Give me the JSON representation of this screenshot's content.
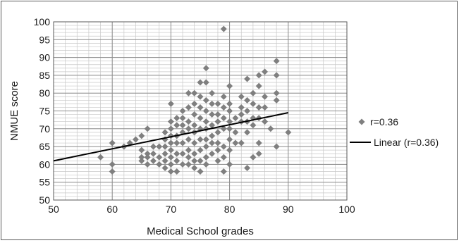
{
  "chart_data": {
    "type": "scatter",
    "xlabel": "Medical School grades",
    "ylabel": "NMUE score",
    "xlim": [
      50,
      100
    ],
    "ylim": [
      50,
      100
    ],
    "x_ticks": [
      50,
      60,
      70,
      80,
      90,
      100
    ],
    "y_ticks": [
      50,
      55,
      60,
      65,
      70,
      75,
      80,
      85,
      90,
      95,
      100
    ],
    "x_tick_labels": [
      "50",
      "60",
      "70",
      "80",
      "90",
      "100"
    ],
    "y_tick_labels": [
      "50",
      "55",
      "60",
      "65",
      "70",
      "75",
      "80",
      "85",
      "90",
      "95",
      "100"
    ],
    "grid": true,
    "legend_position": "right",
    "series": [
      {
        "name": "r=0.36",
        "marker": "diamond",
        "color": "#7f7f7f",
        "points": [
          [
            58,
            62
          ],
          [
            60,
            66
          ],
          [
            60,
            60
          ],
          [
            60,
            58
          ],
          [
            62,
            65
          ],
          [
            63,
            66
          ],
          [
            64,
            67
          ],
          [
            65,
            68
          ],
          [
            65,
            64
          ],
          [
            65,
            62
          ],
          [
            65,
            61
          ],
          [
            66,
            70
          ],
          [
            66,
            63
          ],
          [
            66,
            62
          ],
          [
            66,
            60
          ],
          [
            67,
            65
          ],
          [
            67,
            63
          ],
          [
            67,
            61
          ],
          [
            68,
            65
          ],
          [
            68,
            62
          ],
          [
            68,
            60
          ],
          [
            69,
            69
          ],
          [
            69,
            67
          ],
          [
            69,
            65
          ],
          [
            69,
            63
          ],
          [
            69,
            61
          ],
          [
            69,
            59
          ],
          [
            70,
            77
          ],
          [
            70,
            72
          ],
          [
            70,
            70
          ],
          [
            70,
            68
          ],
          [
            70,
            66
          ],
          [
            70,
            64
          ],
          [
            70,
            62
          ],
          [
            70,
            60
          ],
          [
            70,
            58
          ],
          [
            71,
            73
          ],
          [
            71,
            71
          ],
          [
            71,
            68
          ],
          [
            71,
            66
          ],
          [
            71,
            63
          ],
          [
            71,
            61
          ],
          [
            71,
            58
          ],
          [
            72,
            75
          ],
          [
            72,
            73
          ],
          [
            72,
            71
          ],
          [
            72,
            69
          ],
          [
            72,
            66
          ],
          [
            72,
            63
          ],
          [
            72,
            60
          ],
          [
            73,
            80
          ],
          [
            73,
            76
          ],
          [
            73,
            72
          ],
          [
            73,
            70
          ],
          [
            73,
            67
          ],
          [
            73,
            64
          ],
          [
            73,
            62
          ],
          [
            73,
            60
          ],
          [
            74,
            80
          ],
          [
            74,
            77
          ],
          [
            74,
            74
          ],
          [
            74,
            71
          ],
          [
            74,
            69
          ],
          [
            74,
            66
          ],
          [
            74,
            63
          ],
          [
            74,
            61
          ],
          [
            74,
            59
          ],
          [
            75,
            83
          ],
          [
            75,
            79
          ],
          [
            75,
            76
          ],
          [
            75,
            73
          ],
          [
            75,
            70
          ],
          [
            75,
            67
          ],
          [
            75,
            64
          ],
          [
            75,
            61
          ],
          [
            75,
            58
          ],
          [
            76,
            87
          ],
          [
            76,
            83
          ],
          [
            76,
            78
          ],
          [
            76,
            75
          ],
          [
            76,
            72
          ],
          [
            76,
            70
          ],
          [
            76,
            67
          ],
          [
            76,
            65
          ],
          [
            76,
            62
          ],
          [
            76,
            60
          ],
          [
            77,
            80
          ],
          [
            77,
            77
          ],
          [
            77,
            74
          ],
          [
            77,
            71
          ],
          [
            77,
            68
          ],
          [
            77,
            66
          ],
          [
            77,
            63
          ],
          [
            78,
            77
          ],
          [
            78,
            74
          ],
          [
            78,
            72
          ],
          [
            78,
            69
          ],
          [
            78,
            66
          ],
          [
            78,
            64
          ],
          [
            78,
            61
          ],
          [
            79,
            98
          ],
          [
            79,
            79
          ],
          [
            79,
            76
          ],
          [
            79,
            73
          ],
          [
            79,
            70
          ],
          [
            79,
            65
          ],
          [
            79,
            62
          ],
          [
            79,
            58
          ],
          [
            80,
            82
          ],
          [
            80,
            77
          ],
          [
            80,
            75
          ],
          [
            80,
            72
          ],
          [
            80,
            70
          ],
          [
            80,
            67
          ],
          [
            80,
            64
          ],
          [
            80,
            60
          ],
          [
            81,
            73
          ],
          [
            81,
            69
          ],
          [
            81,
            66
          ],
          [
            82,
            79
          ],
          [
            82,
            76
          ],
          [
            82,
            74
          ],
          [
            82,
            72
          ],
          [
            82,
            66
          ],
          [
            83,
            84
          ],
          [
            83,
            78
          ],
          [
            83,
            75
          ],
          [
            83,
            72
          ],
          [
            83,
            69
          ],
          [
            83,
            59
          ],
          [
            84,
            80
          ],
          [
            84,
            77
          ],
          [
            84,
            73
          ],
          [
            84,
            71
          ],
          [
            84,
            62
          ],
          [
            85,
            85
          ],
          [
            85,
            82
          ],
          [
            85,
            76
          ],
          [
            85,
            73
          ],
          [
            85,
            66
          ],
          [
            85,
            63
          ],
          [
            86,
            86
          ],
          [
            86,
            79
          ],
          [
            86,
            76
          ],
          [
            86,
            72
          ],
          [
            87,
            70
          ],
          [
            88,
            89
          ],
          [
            88,
            85
          ],
          [
            88,
            80
          ],
          [
            88,
            78
          ],
          [
            88,
            65
          ],
          [
            90,
            69
          ]
        ]
      }
    ],
    "trendline": {
      "name": "Linear (r=0.36)",
      "type": "linear",
      "x": [
        50,
        90
      ],
      "y": [
        61,
        74.5
      ],
      "color": "#000000"
    }
  }
}
